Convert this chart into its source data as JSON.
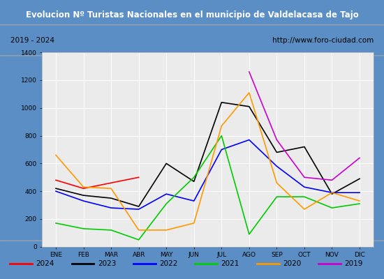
{
  "title": "Evolucion Nº Turistas Nacionales en el municipio de Valdelacasa de Tajo",
  "subtitle_left": "2019 - 2024",
  "subtitle_right": "http://www.foro-ciudad.com",
  "title_bg_color": "#5b8ec4",
  "title_text_color": "#ffffff",
  "months": [
    "ENE",
    "FEB",
    "MAR",
    "ABR",
    "MAY",
    "JUN",
    "JUL",
    "AGO",
    "SEP",
    "OCT",
    "NOV",
    "DIC"
  ],
  "ylim": [
    0,
    1400
  ],
  "yticks": [
    0,
    200,
    400,
    600,
    800,
    1000,
    1200,
    1400
  ],
  "series": {
    "2024": {
      "color": "#ff0000",
      "data": [
        480,
        420,
        460,
        500,
        null,
        null,
        null,
        null,
        null,
        null,
        null,
        null
      ]
    },
    "2023": {
      "color": "#000000",
      "data": [
        420,
        370,
        350,
        290,
        600,
        470,
        1040,
        1010,
        680,
        720,
        380,
        490
      ]
    },
    "2022": {
      "color": "#0000ff",
      "data": [
        400,
        330,
        280,
        270,
        380,
        330,
        700,
        770,
        580,
        430,
        390,
        390
      ]
    },
    "2021": {
      "color": "#00cc00",
      "data": [
        170,
        130,
        120,
        50,
        310,
        500,
        800,
        90,
        360,
        360,
        280,
        310
      ]
    },
    "2020": {
      "color": "#ff9900",
      "data": [
        660,
        430,
        420,
        120,
        120,
        170,
        870,
        1110,
        460,
        270,
        390,
        330
      ]
    },
    "2019": {
      "color": "#cc00cc",
      "data": [
        null,
        null,
        null,
        null,
        null,
        null,
        null,
        1260,
        770,
        500,
        480,
        640
      ]
    }
  },
  "legend_order": [
    "2024",
    "2023",
    "2022",
    "2021",
    "2020",
    "2019"
  ],
  "bg_plot": "#ebebeb",
  "grid_color": "#ffffff",
  "border_color": "#5b8ec4",
  "outer_bg": "#5b8ec4"
}
